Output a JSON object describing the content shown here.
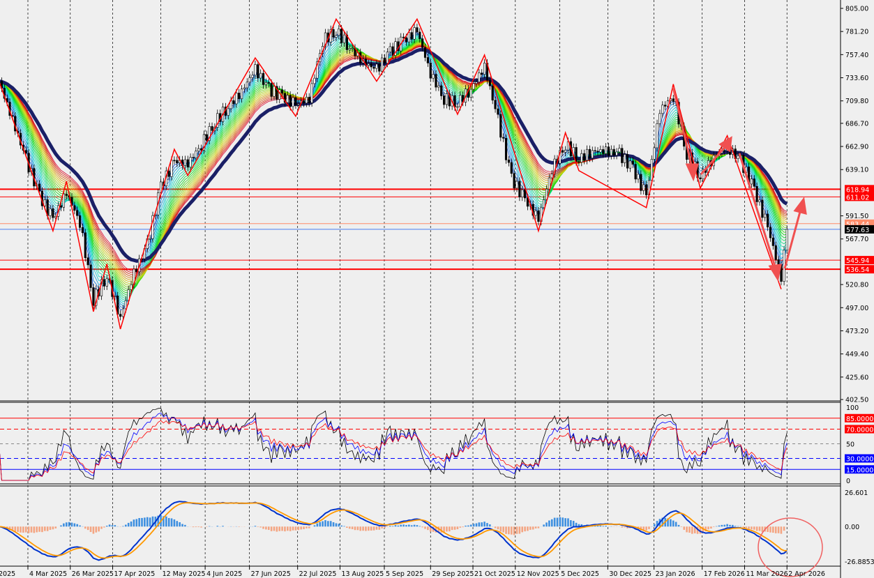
{
  "chart_data": {
    "type": "candlestick",
    "dates": [
      "2025-02-17",
      "2025-02-24",
      "2025-03-03",
      "2025-03-10",
      "2025-03-17",
      "2025-03-24",
      "2025-03-31",
      "2025-04-07",
      "2025-04-14",
      "2025-04-21",
      "2025-04-28",
      "2025-05-05",
      "2025-05-12",
      "2025-05-19",
      "2025-05-26",
      "2025-06-02",
      "2025-06-09",
      "2025-06-16",
      "2025-06-23",
      "2025-06-30",
      "2025-07-07",
      "2025-07-14",
      "2025-07-21",
      "2025-07-28",
      "2025-08-04",
      "2025-08-11",
      "2025-08-18",
      "2025-08-25",
      "2025-09-01",
      "2025-09-08",
      "2025-09-15",
      "2025-09-22",
      "2025-09-29",
      "2025-10-06",
      "2025-10-13",
      "2025-10-20",
      "2025-10-27",
      "2025-11-03",
      "2025-11-10",
      "2025-11-17",
      "2025-11-24",
      "2025-12-01",
      "2025-12-08",
      "2025-12-15",
      "2025-12-22",
      "2025-12-29",
      "2026-01-05",
      "2026-01-12",
      "2026-01-19",
      "2026-01-26",
      "2026-02-02",
      "2026-02-09",
      "2026-02-16",
      "2026-02-23",
      "2026-03-02",
      "2026-03-09",
      "2026-03-16",
      "2026-03-23",
      "2026-03-30",
      "2026-04-02"
    ],
    "close": [
      730,
      690,
      650,
      612,
      588,
      615,
      585,
      505,
      530,
      487,
      532,
      562,
      622,
      648,
      645,
      665,
      688,
      704,
      720,
      742,
      722,
      714,
      706,
      712,
      772,
      782,
      765,
      750,
      742,
      760,
      772,
      782,
      738,
      712,
      708,
      722,
      745,
      690,
      630,
      608,
      588,
      640,
      665,
      650,
      658,
      658,
      655,
      640,
      612,
      700,
      715,
      655,
      632,
      652,
      662,
      648,
      618,
      580,
      528,
      577.63
    ],
    "price_ticks": [
      "805.00",
      "781.20",
      "757.40",
      "733.60",
      "709.80",
      "686.70",
      "662.90",
      "639.10",
      "591.50",
      "567.70",
      "520.80",
      "497.00",
      "473.20",
      "449.40",
      "425.60",
      "402.50"
    ],
    "ylim": [
      402.5,
      805
    ],
    "date_ticks": [
      "4 Mar 2025",
      "26 Mar 2025",
      "17 Apr 2025",
      "12 May 2025",
      "4 Jun 2025",
      "27 Jun 2025",
      "22 Jul 2025",
      "13 Aug 2025",
      "5 Sep 2025",
      "29 Sep 2025",
      "21 Oct 2025",
      "12 Nov 2025",
      "5 Dec 2025",
      "30 Dec 2025",
      "23 Jan 2026",
      "17 Feb 2026",
      "11 Mar 2026",
      "2 Apr 2026"
    ],
    "tick_dates": [
      "2025-03-04",
      "2025-03-26",
      "2025-04-17",
      "2025-05-12",
      "2025-06-04",
      "2025-06-27",
      "2025-07-22",
      "2025-08-13",
      "2025-09-05",
      "2025-09-29",
      "2025-10-21",
      "2025-11-12",
      "2025-12-05",
      "2025-12-30",
      "2026-01-23",
      "2026-02-17",
      "2026-03-11",
      "2026-04-02"
    ],
    "first_label_fragment": "2025",
    "levels": [
      {
        "value": 618.94,
        "label": "618.94",
        "color": "#ff0000"
      },
      {
        "value": 611.02,
        "label": "611.02",
        "color": "#ff0000"
      },
      {
        "value": 583.44,
        "label": "583.44",
        "color": "#ff8c69"
      },
      {
        "value": 577.63,
        "label": "577.63",
        "color": "#000000"
      },
      {
        "value": 545.94,
        "label": "545.94",
        "color": "#ff0000"
      },
      {
        "value": 536.54,
        "label": "536.54",
        "color": "#ff0000"
      }
    ],
    "oscillator": {
      "ticks": [
        "100",
        "50",
        "0"
      ],
      "levels": [
        {
          "value": 85,
          "label": "85.0000",
          "color": "#ff0000"
        },
        {
          "value": 70,
          "label": "70.0000",
          "color": "#ff0000"
        },
        {
          "value": 30,
          "label": "30.0000",
          "color": "#0000ff"
        },
        {
          "value": 15,
          "label": "15.0000",
          "color": "#0000ff"
        }
      ]
    },
    "macd": {
      "ticks": [
        "26.601",
        "0.00",
        "-26.8853"
      ],
      "ylim": [
        -26.8853,
        26.601
      ]
    },
    "colors": {
      "ma_thick": "#1a1f66",
      "zigzag": "#ff0000",
      "hist_pos": "#3d8fe0",
      "hist_neg": "#f4a582",
      "signal": "#ff9900",
      "macd": "#0033cc"
    }
  }
}
